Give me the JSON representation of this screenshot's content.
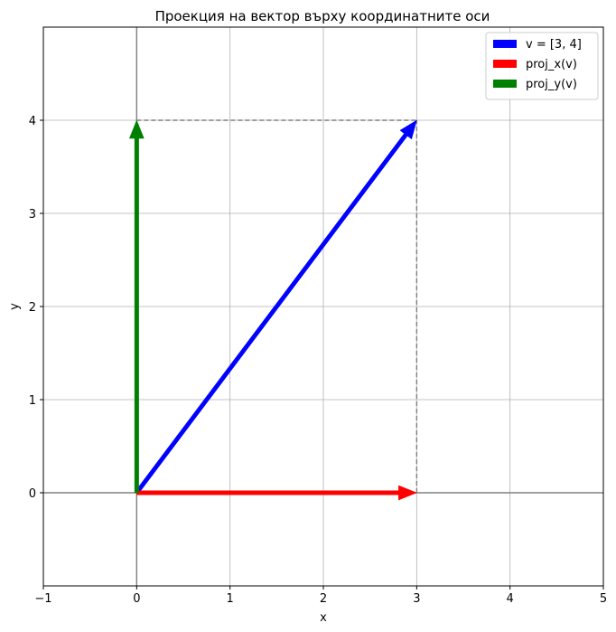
{
  "chart_data": {
    "type": "vector",
    "title": "Проекция на вектор върху координатните оси",
    "xlabel": "x",
    "ylabel": "y",
    "xlim": [
      -1,
      5
    ],
    "ylim": [
      -1,
      5
    ],
    "xticks": [
      -1,
      0,
      1,
      2,
      3,
      4,
      5
    ],
    "yticks": [
      0,
      1,
      2,
      3,
      4
    ],
    "grid": true,
    "legend_position": "top-right",
    "vectors": [
      {
        "name": "v = [3, 4]",
        "from": [
          0,
          0
        ],
        "to": [
          3,
          4
        ],
        "color": "#0000ff"
      },
      {
        "name": "proj_x(v)",
        "from": [
          0,
          0
        ],
        "to": [
          3,
          0
        ],
        "color": "#ff0000"
      },
      {
        "name": "proj_y(v)",
        "from": [
          0,
          0
        ],
        "to": [
          0,
          4
        ],
        "color": "#008000"
      }
    ],
    "guides": [
      {
        "from": [
          3,
          0
        ],
        "to": [
          3,
          4
        ],
        "style": "dashed",
        "color": "#808080"
      },
      {
        "from": [
          0,
          4
        ],
        "to": [
          3,
          4
        ],
        "style": "dashed",
        "color": "#808080"
      }
    ]
  }
}
